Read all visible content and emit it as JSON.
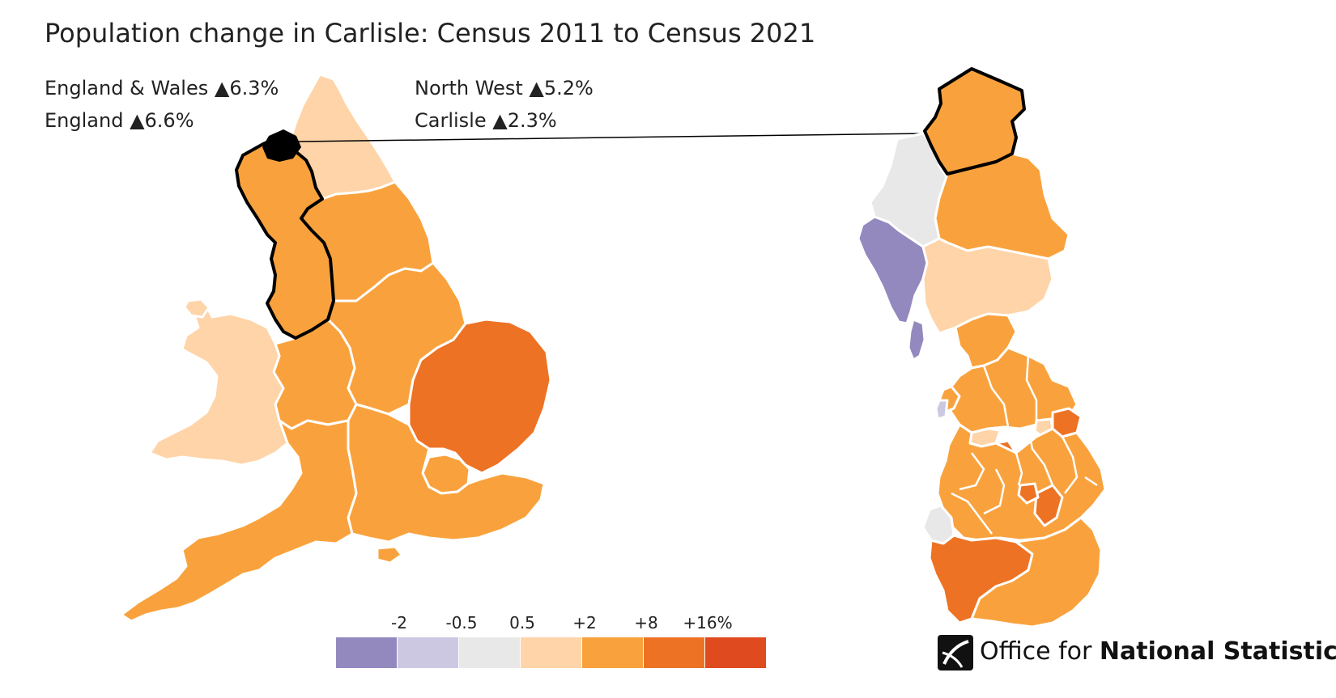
{
  "title": "Population change in Carlisle: Census 2011 to Census 2021",
  "stats": [
    {
      "label": "England & Wales",
      "value": "▲6.3%"
    },
    {
      "label": "England",
      "value": "▲6.6%"
    },
    {
      "label": "North West",
      "value": "▲5.2%"
    },
    {
      "label": "Carlisle",
      "value": "▲2.3%"
    }
  ],
  "legend": {
    "ticks": [
      "-2",
      "-0.5",
      "0.5",
      "+2",
      "+8",
      "+16%"
    ],
    "colors": [
      "#9389be",
      "#cdc8e2",
      "#e8e8e8",
      "#fed4a8",
      "#f9a23d",
      "#ed7224",
      "#e04a1f"
    ]
  },
  "map_colors": {
    "highlight": "#000000",
    "border": "#ffffff"
  },
  "logo": {
    "prefix": "Office for ",
    "bold": "National Statistics"
  }
}
